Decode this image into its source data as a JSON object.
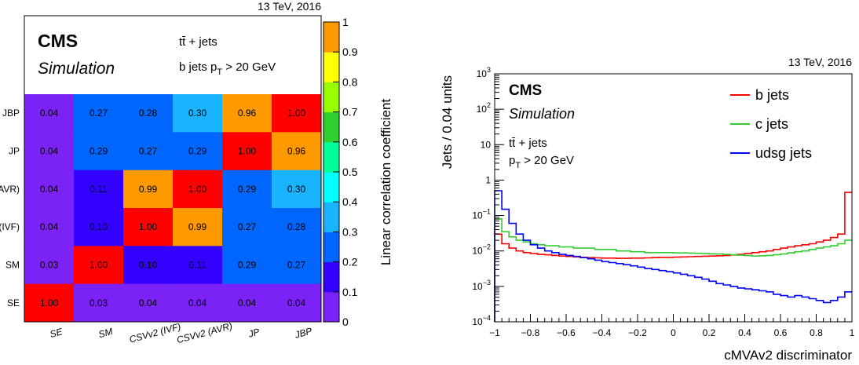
{
  "chart_data": [
    {
      "type": "heatmap",
      "header_right": "13 TeV, 2016",
      "cms_label": "CMS",
      "cms_sublabel": "Simulation",
      "info_line1": "tt̄ + jets",
      "info_line2_pre": "b jets p",
      "info_line2_sub": "T",
      "info_line2_post": " > 20 GeV",
      "x_labels": [
        "SE",
        "SM",
        "CSVv2 (IVF)",
        "CSVv2 (AVR)",
        "JP",
        "JBP"
      ],
      "y_labels_top_to_bottom": [
        "JBP",
        "JP",
        "AVR)",
        "(IVF)",
        "SM",
        "SE"
      ],
      "rows_top_to_bottom": [
        [
          0.04,
          0.27,
          0.28,
          0.3,
          0.96,
          1.0
        ],
        [
          0.04,
          0.29,
          0.27,
          0.29,
          1.0,
          0.96
        ],
        [
          0.04,
          0.11,
          0.99,
          1.0,
          0.29,
          0.3
        ],
        [
          0.04,
          0.1,
          1.0,
          0.99,
          0.27,
          0.28
        ],
        [
          0.03,
          1.0,
          0.1,
          0.11,
          0.29,
          0.27
        ],
        [
          1.0,
          0.03,
          0.04,
          0.04,
          0.04,
          0.04
        ]
      ],
      "z_range": [
        0,
        1
      ],
      "z_ticks": [
        "0",
        "0.1",
        "0.2",
        "0.3",
        "0.4",
        "0.5",
        "0.6",
        "0.7",
        "0.8",
        "0.9",
        "1"
      ],
      "z_label": "Linear correlation coefficient",
      "palette": [
        "#7b22f7",
        "#3300ff",
        "#0066ff",
        "#1ab3ff",
        "#00ffff",
        "#00ff99",
        "#2ed12e",
        "#99ff00",
        "#ffff00",
        "#ff9900",
        "#ff0000"
      ]
    },
    {
      "type": "line",
      "header_right": "13 TeV, 2016",
      "cms_label": "CMS",
      "cms_sublabel": "Simulation",
      "info_line1": "tt̄ + jets",
      "info_line2_pre": "p",
      "info_line2_sub": "T",
      "info_line2_post": " > 20 GeV",
      "xlabel": "cMVAv2 discriminator",
      "ylabel": "Jets / 0.04 units",
      "xlim": [
        -1,
        1
      ],
      "y_log": true,
      "ylim": [
        0.0001,
        1000
      ],
      "x_ticks": [
        "−1",
        "−0.8",
        "−0.6",
        "−0.4",
        "−0.2",
        "0",
        "0.2",
        "0.4",
        "0.6",
        "0.8",
        "1"
      ],
      "y_ticks": [
        {
          "mant": "10",
          "exp": "−4",
          "value": 0.0001
        },
        {
          "mant": "10",
          "exp": "−3",
          "value": 0.001
        },
        {
          "mant": "10",
          "exp": "−2",
          "value": 0.01
        },
        {
          "mant": "10",
          "exp": "−1",
          "value": 0.1
        },
        {
          "mant": "1",
          "exp": "",
          "value": 1
        },
        {
          "mant": "10",
          "exp": "",
          "value": 10
        },
        {
          "mant": "10",
          "exp": "2",
          "value": 100
        },
        {
          "mant": "10",
          "exp": "3",
          "value": 1000
        }
      ],
      "bin_edges_start": -1,
      "bin_width": 0.04,
      "series": [
        {
          "name": "b jets",
          "color": "#ff0000",
          "values": [
            0.03,
            0.016,
            0.012,
            0.01,
            0.009,
            0.0085,
            0.008,
            0.0078,
            0.0075,
            0.0072,
            0.007,
            0.0068,
            0.0066,
            0.0065,
            0.0064,
            0.0063,
            0.0063,
            0.0062,
            0.0062,
            0.0063,
            0.0063,
            0.0064,
            0.0065,
            0.0066,
            0.0066,
            0.0067,
            0.0068,
            0.0069,
            0.007,
            0.0071,
            0.0072,
            0.0073,
            0.0075,
            0.0077,
            0.008,
            0.0085,
            0.009,
            0.0095,
            0.01,
            0.011,
            0.012,
            0.013,
            0.014,
            0.015,
            0.016,
            0.018,
            0.02,
            0.024,
            0.03,
            0.45
          ]
        },
        {
          "name": "c jets",
          "color": "#33cc33",
          "values": [
            0.08,
            0.035,
            0.025,
            0.02,
            0.018,
            0.016,
            0.015,
            0.014,
            0.014,
            0.013,
            0.013,
            0.012,
            0.012,
            0.012,
            0.011,
            0.011,
            0.011,
            0.01,
            0.01,
            0.0095,
            0.0095,
            0.009,
            0.009,
            0.009,
            0.009,
            0.0088,
            0.0088,
            0.0087,
            0.0086,
            0.0085,
            0.0083,
            0.0082,
            0.008,
            0.0078,
            0.0076,
            0.0074,
            0.0072,
            0.0073,
            0.0075,
            0.0078,
            0.0082,
            0.0088,
            0.0095,
            0.01,
            0.011,
            0.012,
            0.013,
            0.014,
            0.016,
            0.02
          ]
        },
        {
          "name": "udsg jets",
          "color": "#0000ff",
          "values": [
            0.5,
            0.15,
            0.06,
            0.03,
            0.02,
            0.015,
            0.012,
            0.01,
            0.009,
            0.008,
            0.0075,
            0.007,
            0.0065,
            0.006,
            0.0055,
            0.005,
            0.0047,
            0.0044,
            0.0041,
            0.0038,
            0.0035,
            0.0032,
            0.003,
            0.0028,
            0.0026,
            0.0024,
            0.0022,
            0.002,
            0.0018,
            0.0016,
            0.0014,
            0.0012,
            0.0011,
            0.001,
            0.0009,
            0.00085,
            0.0008,
            0.00075,
            0.0007,
            0.0006,
            0.00055,
            0.0005,
            0.00055,
            0.0005,
            0.00045,
            0.0004,
            0.00035,
            0.0004,
            0.0005,
            0.0007
          ]
        }
      ]
    }
  ]
}
